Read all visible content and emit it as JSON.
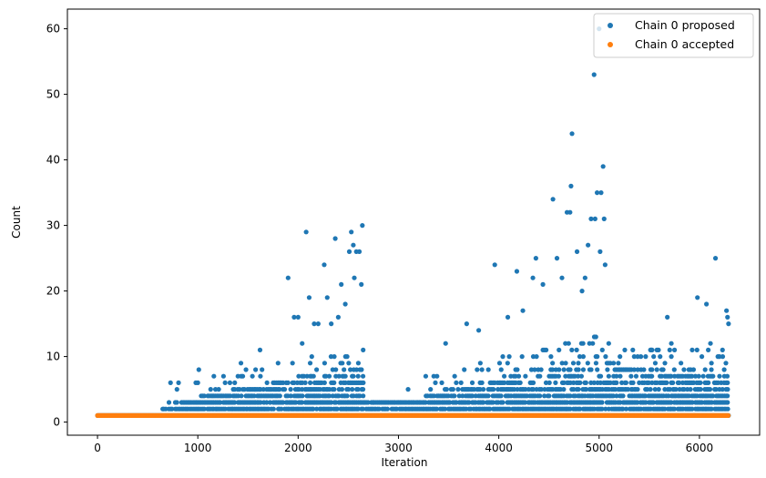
{
  "chart_data": {
    "type": "scatter",
    "title": "",
    "xlabel": "Iteration",
    "ylabel": "Count",
    "xlim": [
      -300,
      6600
    ],
    "ylim": [
      -2,
      63
    ],
    "xticks": [
      0,
      1000,
      2000,
      3000,
      4000,
      5000,
      6000
    ],
    "yticks": [
      0,
      10,
      20,
      30,
      40,
      50,
      60
    ],
    "grid": false,
    "legend_position": "top-right",
    "series": [
      {
        "name": "Chain 0 proposed",
        "color": "#1f77b4",
        "x_range": [
          0,
          6290
        ],
        "baseline_value": 1,
        "band_note": "dense points 1-8 from ~700 to 2650 and ~3000 to 6290",
        "notable_points": [
          {
            "x": 650,
            "y": 2
          },
          {
            "x": 980,
            "y": 6
          },
          {
            "x": 1010,
            "y": 8
          },
          {
            "x": 1430,
            "y": 9
          },
          {
            "x": 1620,
            "y": 11
          },
          {
            "x": 1900,
            "y": 22
          },
          {
            "x": 1960,
            "y": 16
          },
          {
            "x": 2000,
            "y": 16
          },
          {
            "x": 2040,
            "y": 12
          },
          {
            "x": 2080,
            "y": 29
          },
          {
            "x": 2110,
            "y": 19
          },
          {
            "x": 2160,
            "y": 15
          },
          {
            "x": 2200,
            "y": 15
          },
          {
            "x": 2260,
            "y": 24
          },
          {
            "x": 2290,
            "y": 19
          },
          {
            "x": 2330,
            "y": 15
          },
          {
            "x": 2370,
            "y": 28
          },
          {
            "x": 2400,
            "y": 16
          },
          {
            "x": 2430,
            "y": 21
          },
          {
            "x": 2470,
            "y": 18
          },
          {
            "x": 2510,
            "y": 26
          },
          {
            "x": 2530,
            "y": 29
          },
          {
            "x": 2550,
            "y": 27
          },
          {
            "x": 2560,
            "y": 22
          },
          {
            "x": 2580,
            "y": 26
          },
          {
            "x": 2610,
            "y": 26
          },
          {
            "x": 2630,
            "y": 21
          },
          {
            "x": 2640,
            "y": 30
          },
          {
            "x": 2750,
            "y": 3
          },
          {
            "x": 3470,
            "y": 12
          },
          {
            "x": 3680,
            "y": 15
          },
          {
            "x": 3800,
            "y": 14
          },
          {
            "x": 3960,
            "y": 24
          },
          {
            "x": 4090,
            "y": 16
          },
          {
            "x": 4180,
            "y": 23
          },
          {
            "x": 4240,
            "y": 17
          },
          {
            "x": 4340,
            "y": 22
          },
          {
            "x": 4370,
            "y": 25
          },
          {
            "x": 4440,
            "y": 21
          },
          {
            "x": 4540,
            "y": 34
          },
          {
            "x": 4580,
            "y": 25
          },
          {
            "x": 4630,
            "y": 22
          },
          {
            "x": 4680,
            "y": 32
          },
          {
            "x": 4710,
            "y": 32
          },
          {
            "x": 4720,
            "y": 36
          },
          {
            "x": 4730,
            "y": 44
          },
          {
            "x": 4780,
            "y": 26
          },
          {
            "x": 4830,
            "y": 20
          },
          {
            "x": 4860,
            "y": 22
          },
          {
            "x": 4890,
            "y": 27
          },
          {
            "x": 4920,
            "y": 31
          },
          {
            "x": 4950,
            "y": 53
          },
          {
            "x": 4960,
            "y": 31
          },
          {
            "x": 4980,
            "y": 35
          },
          {
            "x": 5000,
            "y": 60
          },
          {
            "x": 5010,
            "y": 26
          },
          {
            "x": 5020,
            "y": 35
          },
          {
            "x": 5040,
            "y": 39
          },
          {
            "x": 5050,
            "y": 31
          },
          {
            "x": 5060,
            "y": 24
          },
          {
            "x": 5350,
            "y": 10
          },
          {
            "x": 5520,
            "y": 11
          },
          {
            "x": 5680,
            "y": 16
          },
          {
            "x": 5720,
            "y": 12
          },
          {
            "x": 5980,
            "y": 19
          },
          {
            "x": 6070,
            "y": 18
          },
          {
            "x": 6110,
            "y": 12
          },
          {
            "x": 6160,
            "y": 25
          },
          {
            "x": 6230,
            "y": 11
          },
          {
            "x": 6270,
            "y": 17
          },
          {
            "x": 6280,
            "y": 16
          },
          {
            "x": 6290,
            "y": 15
          }
        ]
      },
      {
        "name": "Chain 0 accepted",
        "color": "#ff7f0e",
        "x_range": [
          0,
          6290
        ],
        "value": 1
      }
    ]
  }
}
